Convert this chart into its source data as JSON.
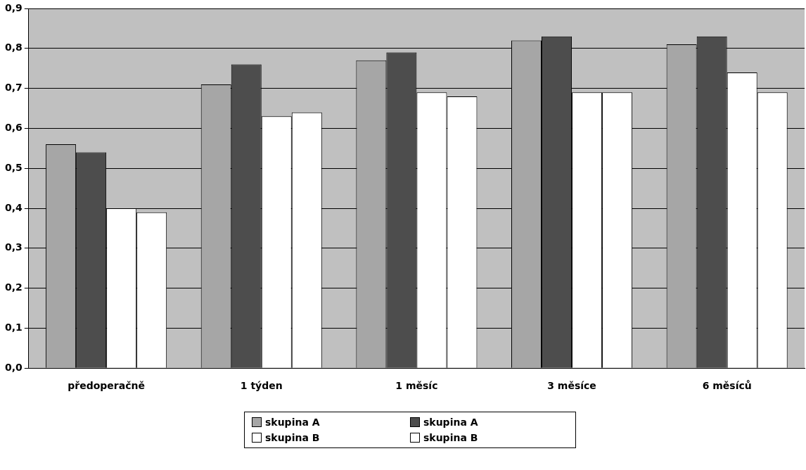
{
  "chart_data": {
    "type": "bar",
    "categories": [
      "předoperačně",
      "1 týden",
      "1 měsíc",
      "3 měsíce",
      "6 měsíců"
    ],
    "series": [
      {
        "name": "skupina A",
        "color": "#a6a6a6",
        "values": [
          0.56,
          0.71,
          0.77,
          0.82,
          0.81
        ]
      },
      {
        "name": "skupina A",
        "color": "#4d4d4d",
        "values": [
          0.54,
          0.76,
          0.79,
          0.83,
          0.83
        ]
      },
      {
        "name": "skupina B",
        "color": "#ffffff",
        "values": [
          0.4,
          0.63,
          0.69,
          0.69,
          0.74
        ]
      },
      {
        "name": "skupina B",
        "color": "#ffffff",
        "values": [
          0.39,
          0.64,
          0.68,
          0.69,
          0.69
        ]
      }
    ],
    "ylim": [
      0,
      0.9
    ],
    "yticks": [
      {
        "value": 0,
        "label": "0,0"
      },
      {
        "value": 0.1,
        "label": "0,1"
      },
      {
        "value": 0.2,
        "label": "0,2"
      },
      {
        "value": 0.3,
        "label": "0,3"
      },
      {
        "value": 0.4,
        "label": "0,4"
      },
      {
        "value": 0.5,
        "label": "0,5"
      },
      {
        "value": 0.6,
        "label": "0,6"
      },
      {
        "value": 0.7,
        "label": "0,7"
      },
      {
        "value": 0.8,
        "label": "0,8"
      },
      {
        "value": 0.9,
        "label": "0,9"
      }
    ],
    "grid": "y",
    "legend": "bottom"
  }
}
